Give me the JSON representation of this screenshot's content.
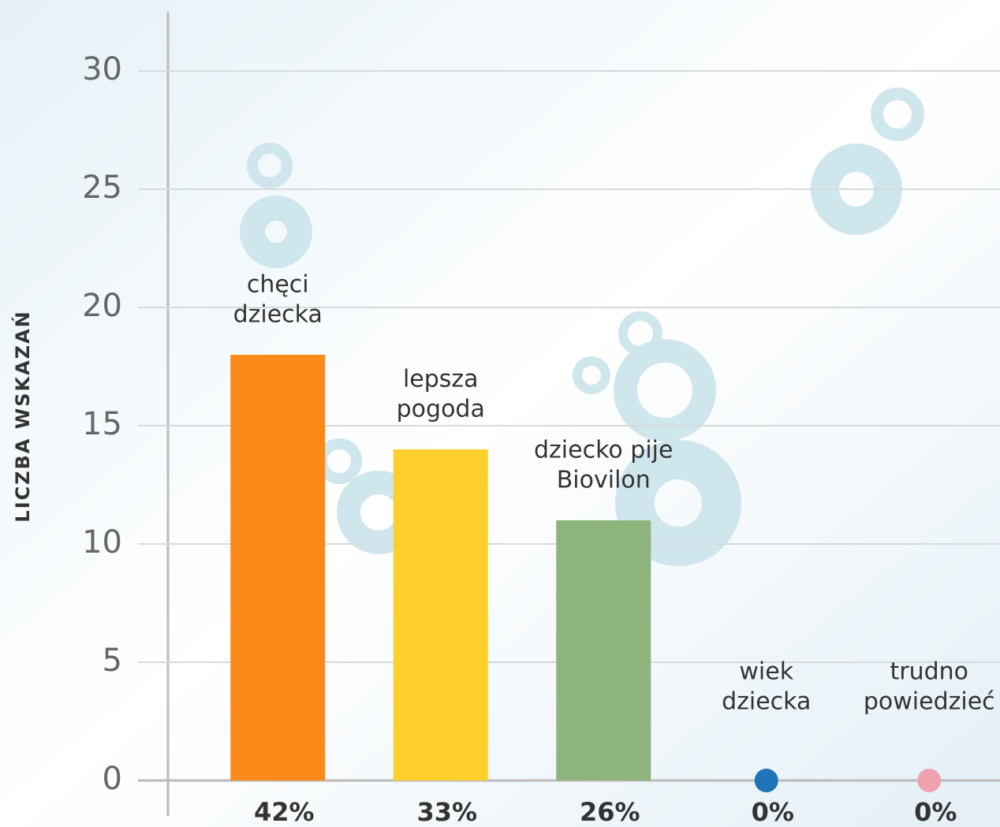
{
  "chart_data": {
    "type": "bar",
    "y_label": "LICZBA WSKAZAŃ",
    "categories": [
      [
        "chęci",
        "dziecka"
      ],
      [
        "lepsza",
        "pogoda"
      ],
      [
        "dziecko pije",
        "Biovilon"
      ],
      [
        "wiek",
        "dziecka"
      ],
      [
        "trudno",
        "powiedzieć"
      ]
    ],
    "values": [
      18,
      14,
      11,
      0,
      0
    ],
    "share_labels": [
      "42%",
      "33%",
      "26%",
      "0%",
      "0%"
    ],
    "colors": [
      "#fb8a1a",
      "#fdd02e",
      "#8cb47c",
      "#1f73b7",
      "#eea2b0"
    ],
    "ylim": [
      0,
      30
    ],
    "yticks": [
      0,
      5,
      10,
      15,
      20,
      25,
      30
    ],
    "grid": true
  }
}
